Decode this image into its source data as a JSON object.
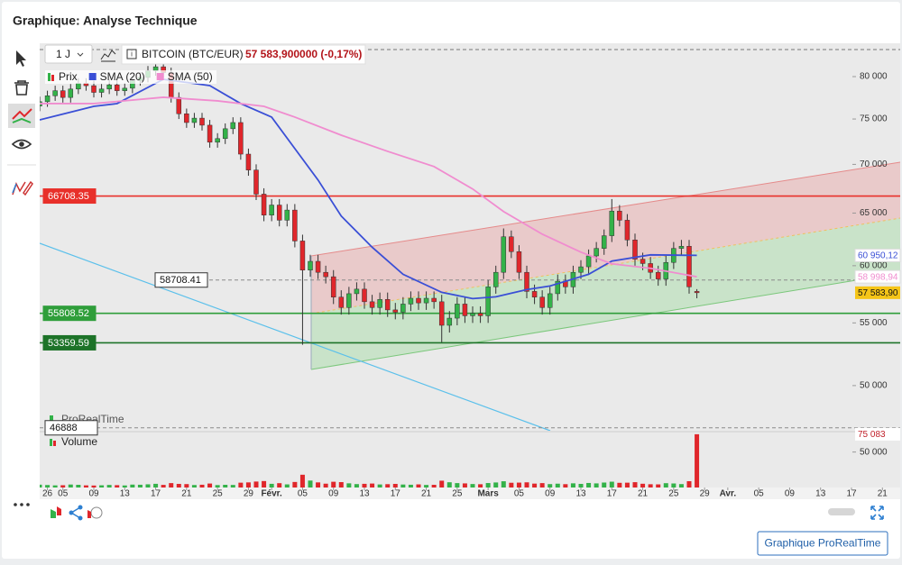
{
  "header": {
    "title": "Graphique: Analyse Technique"
  },
  "toolbar": {
    "timeframe": "1 J",
    "instrument": "BITCOIN (BTC/EUR)",
    "quote": "57 583,900000 (-0,17%)"
  },
  "watermark": "ProRealTime",
  "button": "Graphique ProRealTime",
  "chart_data": {
    "type": "candlestick",
    "log_scale": true,
    "legend": "top-left",
    "x": [
      1,
      2,
      3,
      4,
      5,
      6,
      7,
      8,
      9,
      10,
      11,
      12,
      13,
      14,
      15,
      16,
      17,
      18,
      19,
      20,
      21,
      22,
      23,
      24,
      25,
      26,
      27,
      28,
      29,
      30,
      31,
      32,
      33,
      34,
      35,
      36,
      37,
      38,
      39,
      40,
      41,
      42,
      43,
      44,
      45,
      46,
      47,
      48,
      49,
      50,
      51,
      52,
      53,
      54,
      55,
      56,
      57,
      58,
      59,
      60,
      61,
      62,
      63,
      64,
      65,
      66,
      67,
      68,
      69,
      70,
      71,
      72,
      73,
      74,
      75,
      76,
      77,
      78,
      79,
      80,
      81,
      82,
      83,
      84,
      85,
      86
    ],
    "xlim": [
      1,
      106
    ],
    "xticks": [
      {
        "value": 2,
        "label": "26"
      },
      {
        "value": 4,
        "label": "05"
      },
      {
        "value": 8,
        "label": "09"
      },
      {
        "value": 12,
        "label": "13"
      },
      {
        "value": 16,
        "label": "17"
      },
      {
        "value": 20,
        "label": "21"
      },
      {
        "value": 24,
        "label": "25"
      },
      {
        "value": 28,
        "label": "29"
      },
      {
        "value": 31,
        "label": "Févr."
      },
      {
        "value": 35,
        "label": "05"
      },
      {
        "value": 39,
        "label": "09"
      },
      {
        "value": 43,
        "label": "13"
      },
      {
        "value": 47,
        "label": "17"
      },
      {
        "value": 51,
        "label": "21"
      },
      {
        "value": 55,
        "label": "25"
      },
      {
        "value": 59,
        "label": "Mars"
      },
      {
        "value": 63,
        "label": "05"
      },
      {
        "value": 67,
        "label": "09"
      },
      {
        "value": 71,
        "label": "13"
      },
      {
        "value": 75,
        "label": "17"
      },
      {
        "value": 79,
        "label": "21"
      },
      {
        "value": 83,
        "label": "25"
      },
      {
        "value": 87,
        "label": "29"
      },
      {
        "value": 90,
        "label": "Avr."
      },
      {
        "value": 94,
        "label": "05"
      },
      {
        "value": 98,
        "label": "09"
      },
      {
        "value": 102,
        "label": "13"
      },
      {
        "value": 106,
        "label": "17"
      },
      {
        "value": 110,
        "label": "21"
      }
    ],
    "ylim": [
      46680,
      83930
    ],
    "yticks": [
      {
        "value": 50000,
        "label": "50 000"
      },
      {
        "value": 55000,
        "label": "55 000"
      },
      {
        "value": 60000,
        "label": "60 000"
      },
      {
        "value": 65000,
        "label": "65 000"
      },
      {
        "value": 70000,
        "label": "70 000"
      },
      {
        "value": 75000,
        "label": "75 000"
      },
      {
        "value": 80000,
        "label": "80 000"
      }
    ],
    "series": [
      {
        "name": "Prix",
        "up_color": "#33b249",
        "down_color": "#e0262b",
        "value_label": "57 583,90",
        "open": [
          76500,
          77000,
          77700,
          78300,
          77500,
          78500,
          79200,
          78900,
          78100,
          78500,
          79000,
          78300,
          78600,
          79500,
          79900,
          80700,
          81200,
          80500,
          77500,
          75600,
          74600,
          75100,
          74300,
          72400,
          72800,
          73900,
          74600,
          71100,
          69400,
          66900,
          64800,
          65800,
          64300,
          65300,
          62300,
          59600,
          60400,
          59400,
          59000,
          57200,
          56300,
          57500,
          57900,
          56800,
          56300,
          57000,
          56100,
          55900,
          56600,
          57100,
          56700,
          57100,
          56800,
          54800,
          55400,
          56600,
          55600,
          55800,
          55600,
          58100,
          59400,
          62700,
          61300,
          59400,
          57700,
          57200,
          56300,
          57500,
          58600,
          58100,
          59400,
          59900,
          60900,
          61600,
          62800,
          65200,
          64300,
          62400,
          60600,
          60200,
          59400,
          58800,
          60300,
          61600,
          61800,
          57700
        ],
        "high": [
          77600,
          78300,
          78900,
          78900,
          79100,
          79800,
          79800,
          79500,
          79100,
          79600,
          79600,
          79200,
          80100,
          80500,
          81300,
          81800,
          81800,
          81100,
          78100,
          76200,
          75700,
          75700,
          74900,
          73400,
          74500,
          75200,
          75200,
          71700,
          70000,
          67500,
          66400,
          66400,
          65900,
          65900,
          62900,
          61000,
          61000,
          60000,
          59600,
          57800,
          58100,
          58500,
          58500,
          57400,
          57600,
          57600,
          56700,
          57200,
          57700,
          57700,
          57700,
          57700,
          57400,
          56000,
          57200,
          57200,
          56400,
          56400,
          58700,
          60000,
          63500,
          63300,
          61900,
          60000,
          58300,
          57800,
          58100,
          59200,
          59200,
          60000,
          60500,
          61500,
          62200,
          63400,
          66400,
          65800,
          64900,
          63000,
          61200,
          60800,
          60000,
          60900,
          62200,
          62400,
          62400,
          57900
        ],
        "low": [
          75900,
          76400,
          77100,
          76900,
          76900,
          77900,
          78300,
          77500,
          77500,
          77900,
          77700,
          77700,
          78000,
          78900,
          79300,
          80100,
          79900,
          76900,
          75000,
          74000,
          74000,
          73700,
          71800,
          71800,
          72200,
          73300,
          70500,
          68800,
          66300,
          64200,
          64200,
          63700,
          63700,
          61700,
          53200,
          59000,
          58800,
          58400,
          56600,
          55700,
          55700,
          56900,
          56200,
          55700,
          55700,
          55500,
          55300,
          55300,
          56000,
          56100,
          56100,
          56200,
          53400,
          54200,
          54800,
          55000,
          55000,
          55000,
          55000,
          57500,
          58800,
          60700,
          58800,
          57100,
          56600,
          55700,
          55700,
          56900,
          57500,
          57500,
          58800,
          59300,
          60300,
          61000,
          62200,
          63700,
          61800,
          60000,
          59600,
          58800,
          58200,
          58200,
          59700,
          61000,
          57500,
          57100
        ],
        "close": [
          77000,
          77700,
          78300,
          77500,
          78500,
          79200,
          78900,
          78100,
          78500,
          79000,
          78300,
          78600,
          79500,
          79900,
          80700,
          81200,
          80500,
          77500,
          75600,
          74600,
          75100,
          74300,
          72400,
          72800,
          73900,
          74600,
          71100,
          69400,
          66900,
          64800,
          65800,
          64300,
          65300,
          62300,
          59600,
          60400,
          59400,
          59000,
          57200,
          56300,
          57500,
          57900,
          56800,
          56300,
          57000,
          56100,
          55900,
          56600,
          57100,
          56700,
          57100,
          56800,
          54800,
          55400,
          56600,
          55600,
          55800,
          55600,
          58100,
          59400,
          62700,
          61300,
          59400,
          57700,
          57200,
          56300,
          57500,
          58600,
          58100,
          59400,
          59900,
          60900,
          61600,
          62800,
          65200,
          64300,
          62400,
          60600,
          60200,
          59400,
          58800,
          60300,
          61600,
          61800,
          58100,
          57583.9
        ]
      },
      {
        "name": "SMA (20)",
        "color": "#3a4fd6",
        "value_label": "60 950,12",
        "x": [
          1,
          8,
          11,
          17,
          23,
          27,
          31,
          34,
          37,
          40,
          44,
          48,
          53,
          57,
          60,
          64,
          67,
          72,
          75,
          80,
          86
        ],
        "values": [
          74900,
          76460,
          76780,
          79670,
          78910,
          76780,
          75220,
          71700,
          68360,
          64710,
          61710,
          59220,
          57620,
          57070,
          57230,
          57860,
          58180,
          59220,
          60420,
          61000,
          60950.12
        ]
      },
      {
        "name": "SMA (50)",
        "color": "#f08ccf",
        "value_label": "58 998,94",
        "x": [
          1,
          8,
          17,
          24,
          30,
          34,
          40,
          46,
          52,
          57,
          61,
          66,
          71,
          75,
          80,
          86
        ],
        "values": [
          76780,
          76780,
          77520,
          77100,
          76460,
          75220,
          73180,
          71400,
          69770,
          67430,
          65150,
          62950,
          61250,
          60170,
          59760,
          58998.94
        ]
      }
    ],
    "levels": [
      {
        "value": 66708.35,
        "color": "#e8302a"
      },
      {
        "value": 58708.41,
        "color": "#8a8a8a",
        "dashed": true
      },
      {
        "value": 55808.52,
        "color": "#2f9e3a"
      },
      {
        "value": 53359.59,
        "color": "#1d7328"
      },
      {
        "value": 46888,
        "color": "#8a8a8a",
        "dashed": true
      }
    ],
    "volume": {
      "name": "Volume",
      "ylim": [
        0,
        77500
      ],
      "yticks": [
        {
          "value": 50000,
          "label": "50 000"
        }
      ],
      "value_label": "75 083",
      "values": [
        4000,
        3500,
        3000,
        3200,
        4200,
        3800,
        3000,
        2800,
        3100,
        3600,
        3300,
        2900,
        4100,
        3900,
        4500,
        5200,
        3700,
        6200,
        5100,
        4800,
        3500,
        3900,
        5600,
        3400,
        3800,
        3600,
        6800,
        7200,
        8400,
        9100,
        5200,
        6100,
        4400,
        7800,
        18000,
        9800,
        7200,
        5400,
        8100,
        7600,
        5900,
        4800,
        5200,
        5600,
        4300,
        4700,
        5100,
        4200,
        3900,
        4400,
        3600,
        3800,
        9600,
        7400,
        6200,
        5800,
        4900,
        4600,
        6300,
        7100,
        8800,
        6700,
        6900,
        7300,
        5500,
        6200,
        4800,
        5400,
        4700,
        5900,
        5100,
        6400,
        5800,
        7000,
        8200,
        6600,
        6800,
        7500,
        5300,
        4600,
        4400,
        6100,
        5700,
        4800,
        8900,
        75083
      ]
    }
  }
}
